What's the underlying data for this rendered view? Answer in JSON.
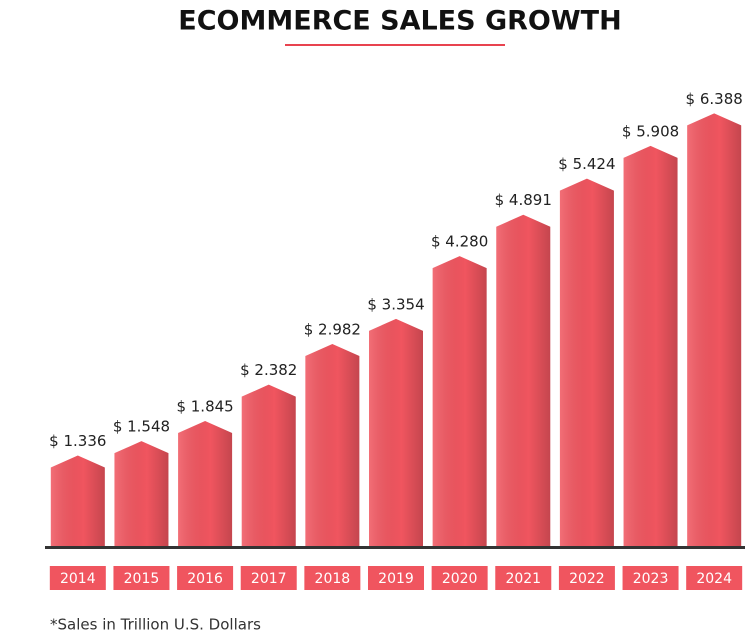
{
  "chart_data": {
    "type": "bar",
    "title": "ECOMMERCE SALES GROWTH",
    "categories": [
      "2014",
      "2015",
      "2016",
      "2017",
      "2018",
      "2019",
      "2020",
      "2021",
      "2022",
      "2023",
      "2024"
    ],
    "values": [
      1.336,
      1.548,
      1.845,
      2.382,
      2.982,
      3.354,
      4.28,
      4.891,
      5.424,
      5.908,
      6.388
    ],
    "value_labels": [
      "$ 1.336",
      "$ 1.548",
      "$ 1.845",
      "$ 2.382",
      "$ 2.982",
      "$ 3.354",
      "$ 4.280",
      "$ 4.891",
      "$ 5.424",
      "$ 5.908",
      "$ 6.388"
    ],
    "color": "#f0555f",
    "ylim": [
      0,
      6.6
    ],
    "note": "*Sales in Trillion U.S. Dollars"
  }
}
